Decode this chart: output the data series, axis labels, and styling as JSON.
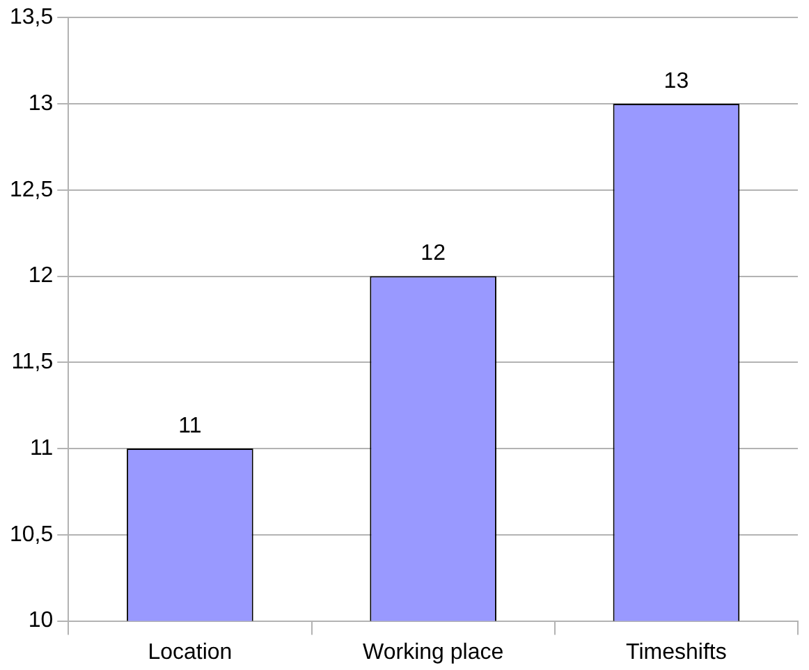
{
  "chart_data": {
    "type": "bar",
    "categories": [
      "Location",
      "Working place",
      "Timeshifts"
    ],
    "values": [
      11,
      12,
      13
    ],
    "color": "#9999ff",
    "ylim": [
      10,
      13.5
    ],
    "yticks": [
      10,
      {
        "value": 10.5,
        "label": "10,5"
      },
      11,
      {
        "value": 11.5,
        "label": "11,5"
      },
      12,
      {
        "value": 12.5,
        "label": "12,5"
      },
      13,
      {
        "value": 13.5,
        "label": "13,5"
      }
    ],
    "grid": "y",
    "data_labels": true
  }
}
